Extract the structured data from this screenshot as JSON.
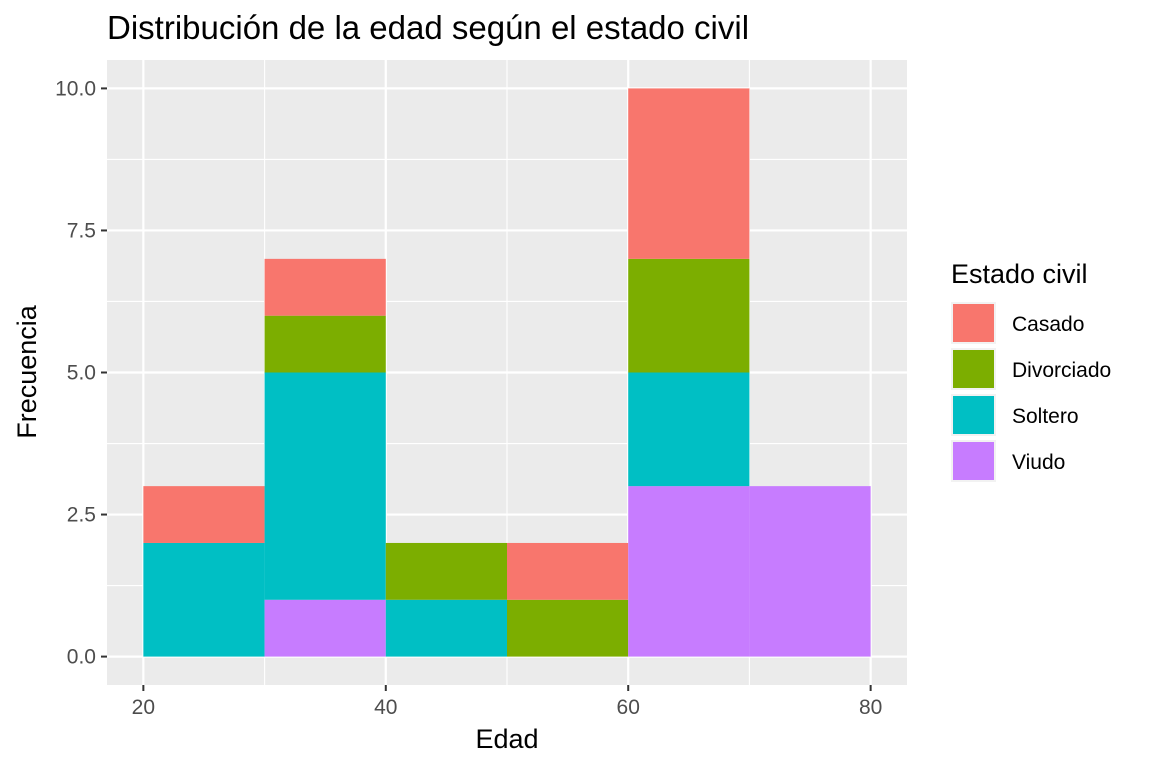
{
  "chart_data": {
    "type": "bar",
    "subtype": "stacked-histogram",
    "title": "Distribución de la edad según el estado civil",
    "xlabel": "Edad",
    "ylabel": "Frecuencia",
    "xlim": [
      17,
      83
    ],
    "ylim": [
      -0.5,
      10.5
    ],
    "x_ticks": [
      20,
      40,
      60,
      80
    ],
    "y_ticks": [
      0,
      2.5,
      5,
      7.5,
      10
    ],
    "y_tick_labels": [
      "0.0",
      "2.5",
      "5.0",
      "7.5",
      "10.0"
    ],
    "bin_edges": [
      20,
      30,
      40,
      50,
      60,
      70,
      80
    ],
    "legend": {
      "title": "Estado civil",
      "position": "right"
    },
    "grid": true,
    "panel_background": "#ebebeb",
    "series": [
      {
        "name": "Casado",
        "color": "#f8766d",
        "values": [
          1,
          1,
          0,
          1,
          3,
          0
        ]
      },
      {
        "name": "Divorciado",
        "color": "#7cae00",
        "values": [
          0,
          1,
          1,
          1,
          2,
          0
        ]
      },
      {
        "name": "Soltero",
        "color": "#00bfc4",
        "values": [
          2,
          4,
          1,
          0,
          2,
          0
        ]
      },
      {
        "name": "Viudo",
        "color": "#c77cff",
        "values": [
          0,
          1,
          0,
          0,
          3,
          3
        ]
      }
    ]
  }
}
